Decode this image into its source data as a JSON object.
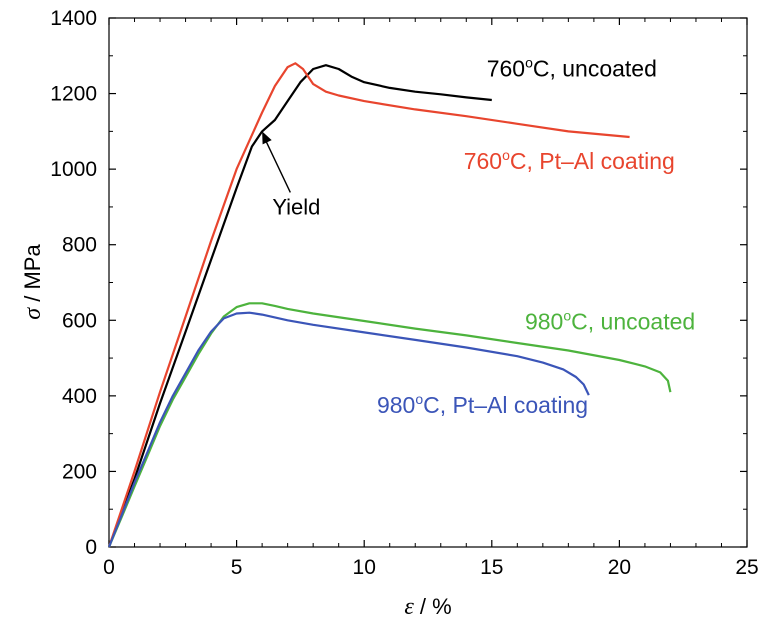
{
  "chart_data": {
    "type": "line",
    "xlim": [
      0,
      25
    ],
    "ylim": [
      0,
      1400
    ],
    "xticks": [
      0,
      5,
      10,
      15,
      20,
      25
    ],
    "yticks": [
      0,
      200,
      400,
      600,
      800,
      1000,
      1200,
      1400
    ],
    "xlabel": {
      "symbol": "ε",
      "text": " / %"
    },
    "ylabel": {
      "symbol": "σ",
      "text": " / MPa"
    },
    "grid": false,
    "legend": "none",
    "series": [
      {
        "name": "760°C, uncoated",
        "label_parts": [
          "760",
          "o",
          "C, uncoated"
        ],
        "color": "#000000",
        "x": [
          0,
          1,
          2,
          3,
          4,
          5,
          5.6,
          6,
          6.5,
          7,
          7.5,
          8,
          8.5,
          9,
          9.5,
          10,
          11,
          12,
          13,
          14,
          15
        ],
        "y": [
          0,
          180,
          380,
          570,
          760,
          950,
          1060,
          1100,
          1130,
          1180,
          1230,
          1265,
          1275,
          1265,
          1245,
          1230,
          1215,
          1205,
          1198,
          1190,
          1183
        ]
      },
      {
        "name": "760°C, Pt–Al coating",
        "label_parts": [
          "760",
          "o",
          "C, Pt–Al coating"
        ],
        "color": "#e8452e",
        "x": [
          0,
          1,
          2,
          3,
          4,
          5,
          6,
          6.5,
          7,
          7.3,
          7.6,
          8,
          8.5,
          9,
          10,
          12,
          14,
          16,
          18,
          20.4
        ],
        "y": [
          0,
          200,
          410,
          610,
          810,
          1000,
          1150,
          1220,
          1270,
          1280,
          1265,
          1225,
          1205,
          1195,
          1180,
          1158,
          1140,
          1120,
          1100,
          1085
        ]
      },
      {
        "name": "980°C, uncoated",
        "label_parts": [
          "980",
          "o",
          "C, uncoated"
        ],
        "color": "#4db33d",
        "x": [
          0,
          0.5,
          1,
          1.5,
          2,
          2.5,
          3,
          3.5,
          4,
          4.5,
          5,
          5.5,
          6,
          6.5,
          7,
          8,
          10,
          12,
          14,
          16,
          18,
          20,
          21,
          21.6,
          21.9,
          22
        ],
        "y": [
          0,
          80,
          160,
          240,
          320,
          390,
          450,
          510,
          565,
          610,
          635,
          645,
          645,
          638,
          630,
          618,
          598,
          578,
          560,
          540,
          520,
          495,
          478,
          462,
          440,
          410
        ]
      },
      {
        "name": "980°C, Pt–Al coating",
        "label_parts": [
          "980",
          "o",
          "C, Pt–Al coating"
        ],
        "color": "#3b55b8",
        "x": [
          0,
          0.5,
          1,
          1.5,
          2,
          2.5,
          3,
          3.5,
          4,
          4.5,
          5,
          5.5,
          6,
          7,
          8,
          10,
          12,
          14,
          16,
          17,
          17.8,
          18.3,
          18.6,
          18.8
        ],
        "y": [
          0,
          85,
          170,
          250,
          330,
          400,
          460,
          520,
          570,
          605,
          618,
          620,
          615,
          600,
          588,
          568,
          548,
          528,
          505,
          488,
          470,
          450,
          430,
          402
        ]
      }
    ],
    "annotations": [
      {
        "text": "Yield",
        "points_to": {
          "x": 6,
          "y": 1100
        }
      }
    ]
  }
}
